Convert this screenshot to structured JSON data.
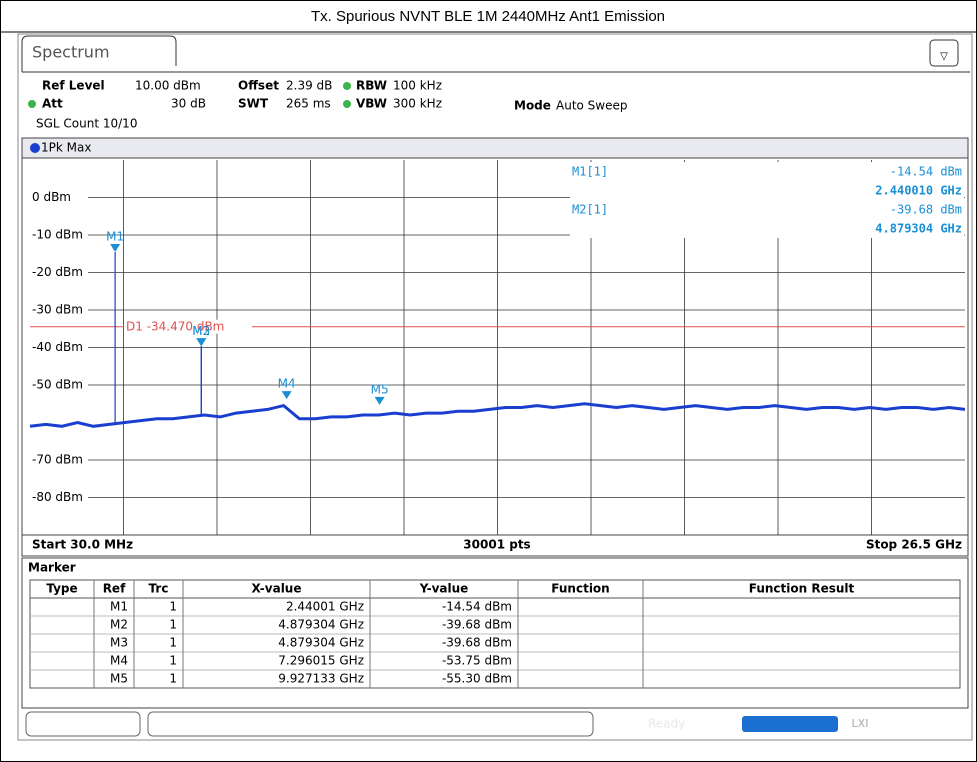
{
  "title": "Tx. Spurious NVNT BLE 1M 2440MHz Ant1 Emission",
  "tab": "Spectrum",
  "settings": {
    "ref_level_label": "Ref Level",
    "ref_level": "10.00 dBm",
    "offset_label": "Offset",
    "offset": "2.39 dB",
    "rbw_label": "RBW",
    "rbw": "100 kHz",
    "att_label": "Att",
    "att": "30 dB",
    "swt_label": "SWT",
    "swt": "265 ms",
    "vbw_label": "VBW",
    "vbw": "300 kHz",
    "mode_label": "Mode",
    "mode": "Auto Sweep",
    "count": "SGL Count 10/10"
  },
  "trace_label": "1Pk Max",
  "marker_info": [
    {
      "name": "M1[1]",
      "level": "-14.54 dBm",
      "freq": "2.440010 GHz"
    },
    {
      "name": "M2[1]",
      "level": "-39.68 dBm",
      "freq": "4.879304 GHz"
    }
  ],
  "plot": {
    "ylim": [
      -90,
      10
    ],
    "xlim": [
      0.03,
      26.5
    ],
    "yticks": [
      {
        "value": 0,
        "label": "0 dBm"
      },
      {
        "value": -10,
        "label": "-10 dBm"
      },
      {
        "value": -20,
        "label": "-20 dBm"
      },
      {
        "value": -30,
        "label": "-30 dBm"
      },
      {
        "value": -40,
        "label": "-40 dBm"
      },
      {
        "value": -50,
        "label": "-50 dBm"
      },
      {
        "value": -70,
        "label": "-70 dBm"
      },
      {
        "value": -80,
        "label": "-80 dBm"
      }
    ],
    "display_line": {
      "label": "D1 -34.470 dBm",
      "value": -34.47
    },
    "markers": [
      {
        "name": "M1",
        "x": 2.44001,
        "y": -14.54
      },
      {
        "name": "M2",
        "x": 4.879304,
        "y": -39.68
      },
      {
        "name": "M3",
        "x": 4.879304,
        "y": -39.68
      },
      {
        "name": "M4",
        "x": 7.296015,
        "y": -53.75
      },
      {
        "name": "M5",
        "x": 9.927133,
        "y": -55.3
      }
    ],
    "trace": [
      -61,
      -60.5,
      -61,
      -60,
      -61,
      -60.5,
      -60,
      -59.5,
      -59,
      -59,
      -58.5,
      -58,
      -58.5,
      -57.5,
      -57,
      -56.5,
      -55.5,
      -59,
      -59,
      -58.5,
      -58.5,
      -58,
      -58,
      -57.5,
      -58,
      -57.5,
      -57.5,
      -57,
      -57,
      -56.5,
      -56,
      -56,
      -55.5,
      -56,
      -55.5,
      -55,
      -55.5,
      -56,
      -55.5,
      -56,
      -56.5,
      -56,
      -55.5,
      -56,
      -56.5,
      -56,
      -56,
      -55.5,
      -56,
      -56.5,
      -56,
      -56,
      -56.5,
      -56,
      -56.5,
      -56,
      -56,
      -56.5,
      -56,
      -56.5
    ],
    "trace_color": "#1a3fd0",
    "marker_color": "#1a8fd4",
    "line_color": "#e05050"
  },
  "footer": {
    "start": "Start 30.0 MHz",
    "points": "30001 pts",
    "stop": "Stop 26.5 GHz"
  },
  "table": {
    "title": "Marker",
    "headers": [
      "Type",
      "Ref",
      "Trc",
      "X-value",
      "Y-value",
      "Function",
      "Function Result"
    ],
    "rows": [
      {
        "type": "M1",
        "trc": "1",
        "x_value": "2.44001 GHz",
        "y_value": "-14.54 dBm"
      },
      {
        "type": "M2",
        "trc": "1",
        "x_value": "4.879304 GHz",
        "y_value": "-39.68 dBm"
      },
      {
        "type": "M3",
        "trc": "1",
        "x_value": "4.879304 GHz",
        "y_value": "-39.68 dBm"
      },
      {
        "type": "M4",
        "trc": "1",
        "x_value": "7.296015 GHz",
        "y_value": "-53.75 dBm"
      },
      {
        "type": "M5",
        "trc": "1",
        "x_value": "9.927133 GHz",
        "y_value": "-55.30 dBm"
      }
    ]
  },
  "status": "Ready"
}
